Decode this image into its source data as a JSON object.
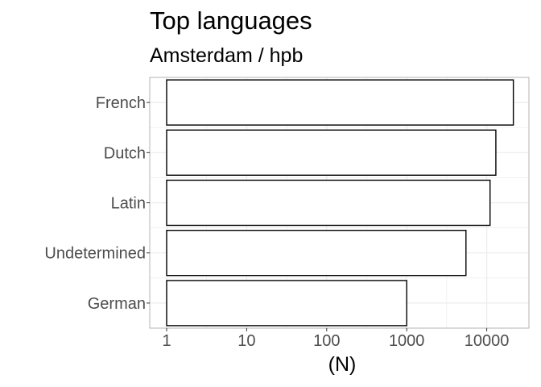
{
  "chart_data": {
    "type": "bar",
    "orientation": "horizontal",
    "title": "Top languages",
    "subtitle": "Amsterdam / hpb",
    "xlabel": "(N)",
    "ylabel": "",
    "x_scale": "log10",
    "xlim": [
      0.8,
      30000
    ],
    "x_ticks": [
      1,
      10,
      100,
      1000,
      10000
    ],
    "x_tick_labels": [
      "1",
      "10",
      "100",
      "1000",
      "10000"
    ],
    "categories": [
      "French",
      "Dutch",
      "Latin",
      "Undetermined",
      "German"
    ],
    "values": [
      21500,
      13000,
      11000,
      5500,
      1000
    ],
    "grid": true,
    "colors": {
      "bar_fill": "#ffffff",
      "bar_stroke": "#000000",
      "grid": "#ebebeb",
      "panel_border": "#b3b3b3",
      "tick_text": "#4d4d4d"
    }
  }
}
